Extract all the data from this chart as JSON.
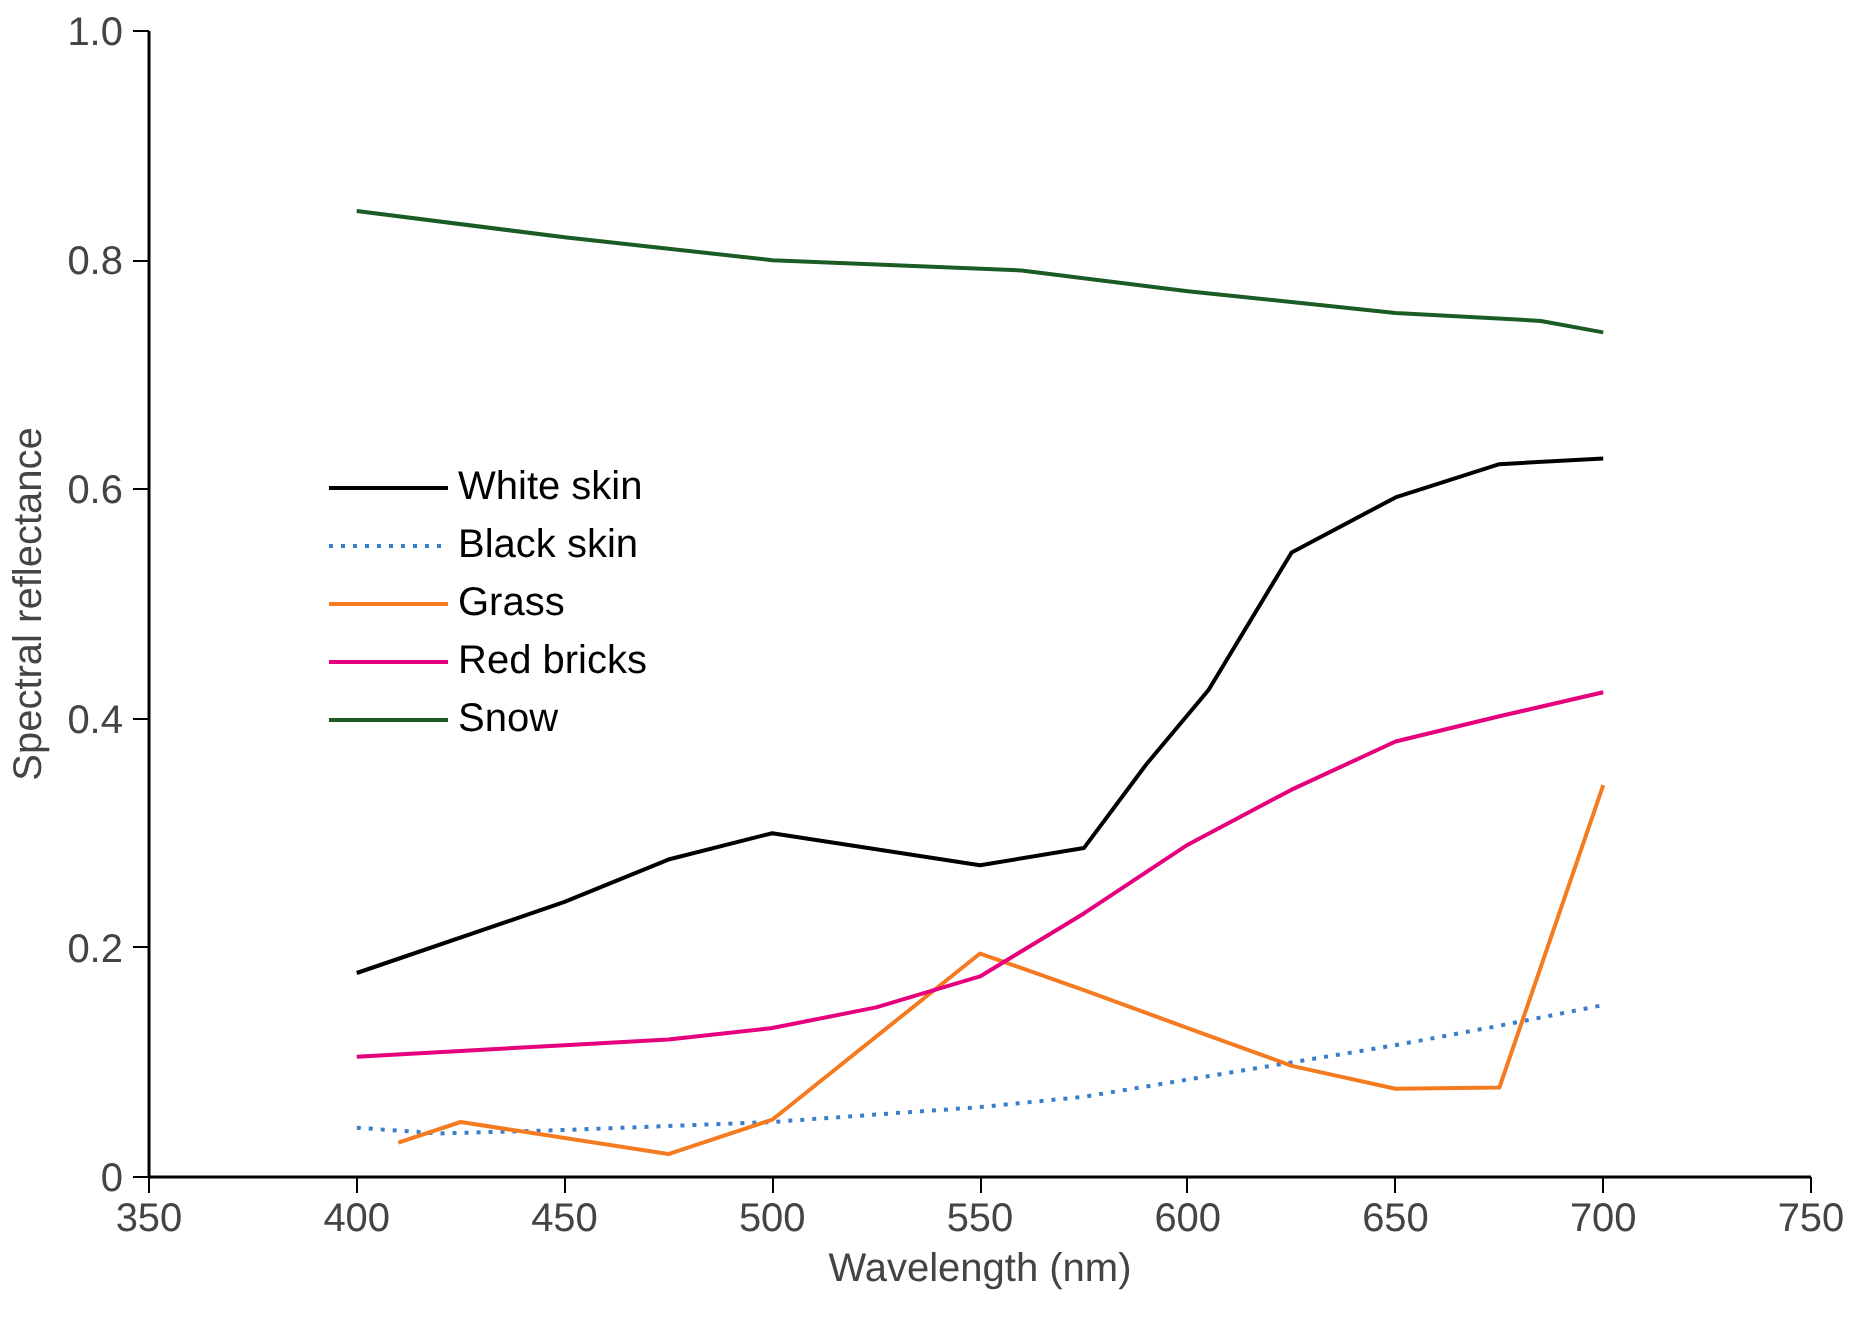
{
  "chart_data": {
    "type": "line",
    "xlabel": "Wavelength (nm)",
    "ylabel": "Spectral reflectance",
    "xlim": [
      350,
      750
    ],
    "xticks": [
      350,
      400,
      450,
      500,
      550,
      600,
      650,
      700,
      750
    ],
    "ylim": [
      0,
      1
    ],
    "yticks": [
      0,
      0.2,
      0.4,
      0.6,
      0.8,
      {
        "value": 1,
        "label": "1.0"
      }
    ],
    "grid": false,
    "legend": "left",
    "marker": "none",
    "series": [
      {
        "name": "White skin",
        "color": "#000000",
        "line_style": "solid",
        "x": [
          400,
          450,
          475,
          500,
          550,
          575,
          590,
          605,
          625,
          650,
          675,
          700
        ],
        "values": [
          0.178,
          0.24,
          0.277,
          0.3,
          0.272,
          0.287,
          0.36,
          0.425,
          0.545,
          0.593,
          0.622,
          0.627
        ]
      },
      {
        "name": "Black skin",
        "color": "#3a7dc9",
        "line_style": "dotted",
        "x": [
          400,
          420,
          450,
          500,
          550,
          575,
          600,
          625,
          650,
          675,
          700
        ],
        "values": [
          0.043,
          0.038,
          0.041,
          0.048,
          0.061,
          0.07,
          0.085,
          0.1,
          0.115,
          0.132,
          0.15
        ]
      },
      {
        "name": "Grass",
        "color": "#f47b20",
        "line_style": "solid",
        "x": [
          410,
          425,
          475,
          500,
          550,
          575,
          600,
          625,
          650,
          675,
          700
        ],
        "values": [
          0.03,
          0.048,
          0.02,
          0.05,
          0.195,
          0.163,
          0.13,
          0.097,
          0.077,
          0.078,
          0.342
        ]
      },
      {
        "name": "Red bricks",
        "color": "#e6007e",
        "line_style": "solid",
        "x": [
          400,
          450,
          475,
          500,
          525,
          550,
          575,
          600,
          625,
          650,
          675,
          700
        ],
        "values": [
          0.105,
          0.115,
          0.12,
          0.13,
          0.148,
          0.175,
          0.23,
          0.29,
          0.338,
          0.38,
          0.402,
          0.423
        ]
      },
      {
        "name": "Snow",
        "color": "#1a5c24",
        "line_style": "solid",
        "x": [
          400,
          450,
          500,
          560,
          600,
          650,
          685,
          700
        ],
        "values": [
          0.843,
          0.82,
          0.8,
          0.791,
          0.773,
          0.754,
          0.747,
          0.737
        ]
      }
    ]
  }
}
